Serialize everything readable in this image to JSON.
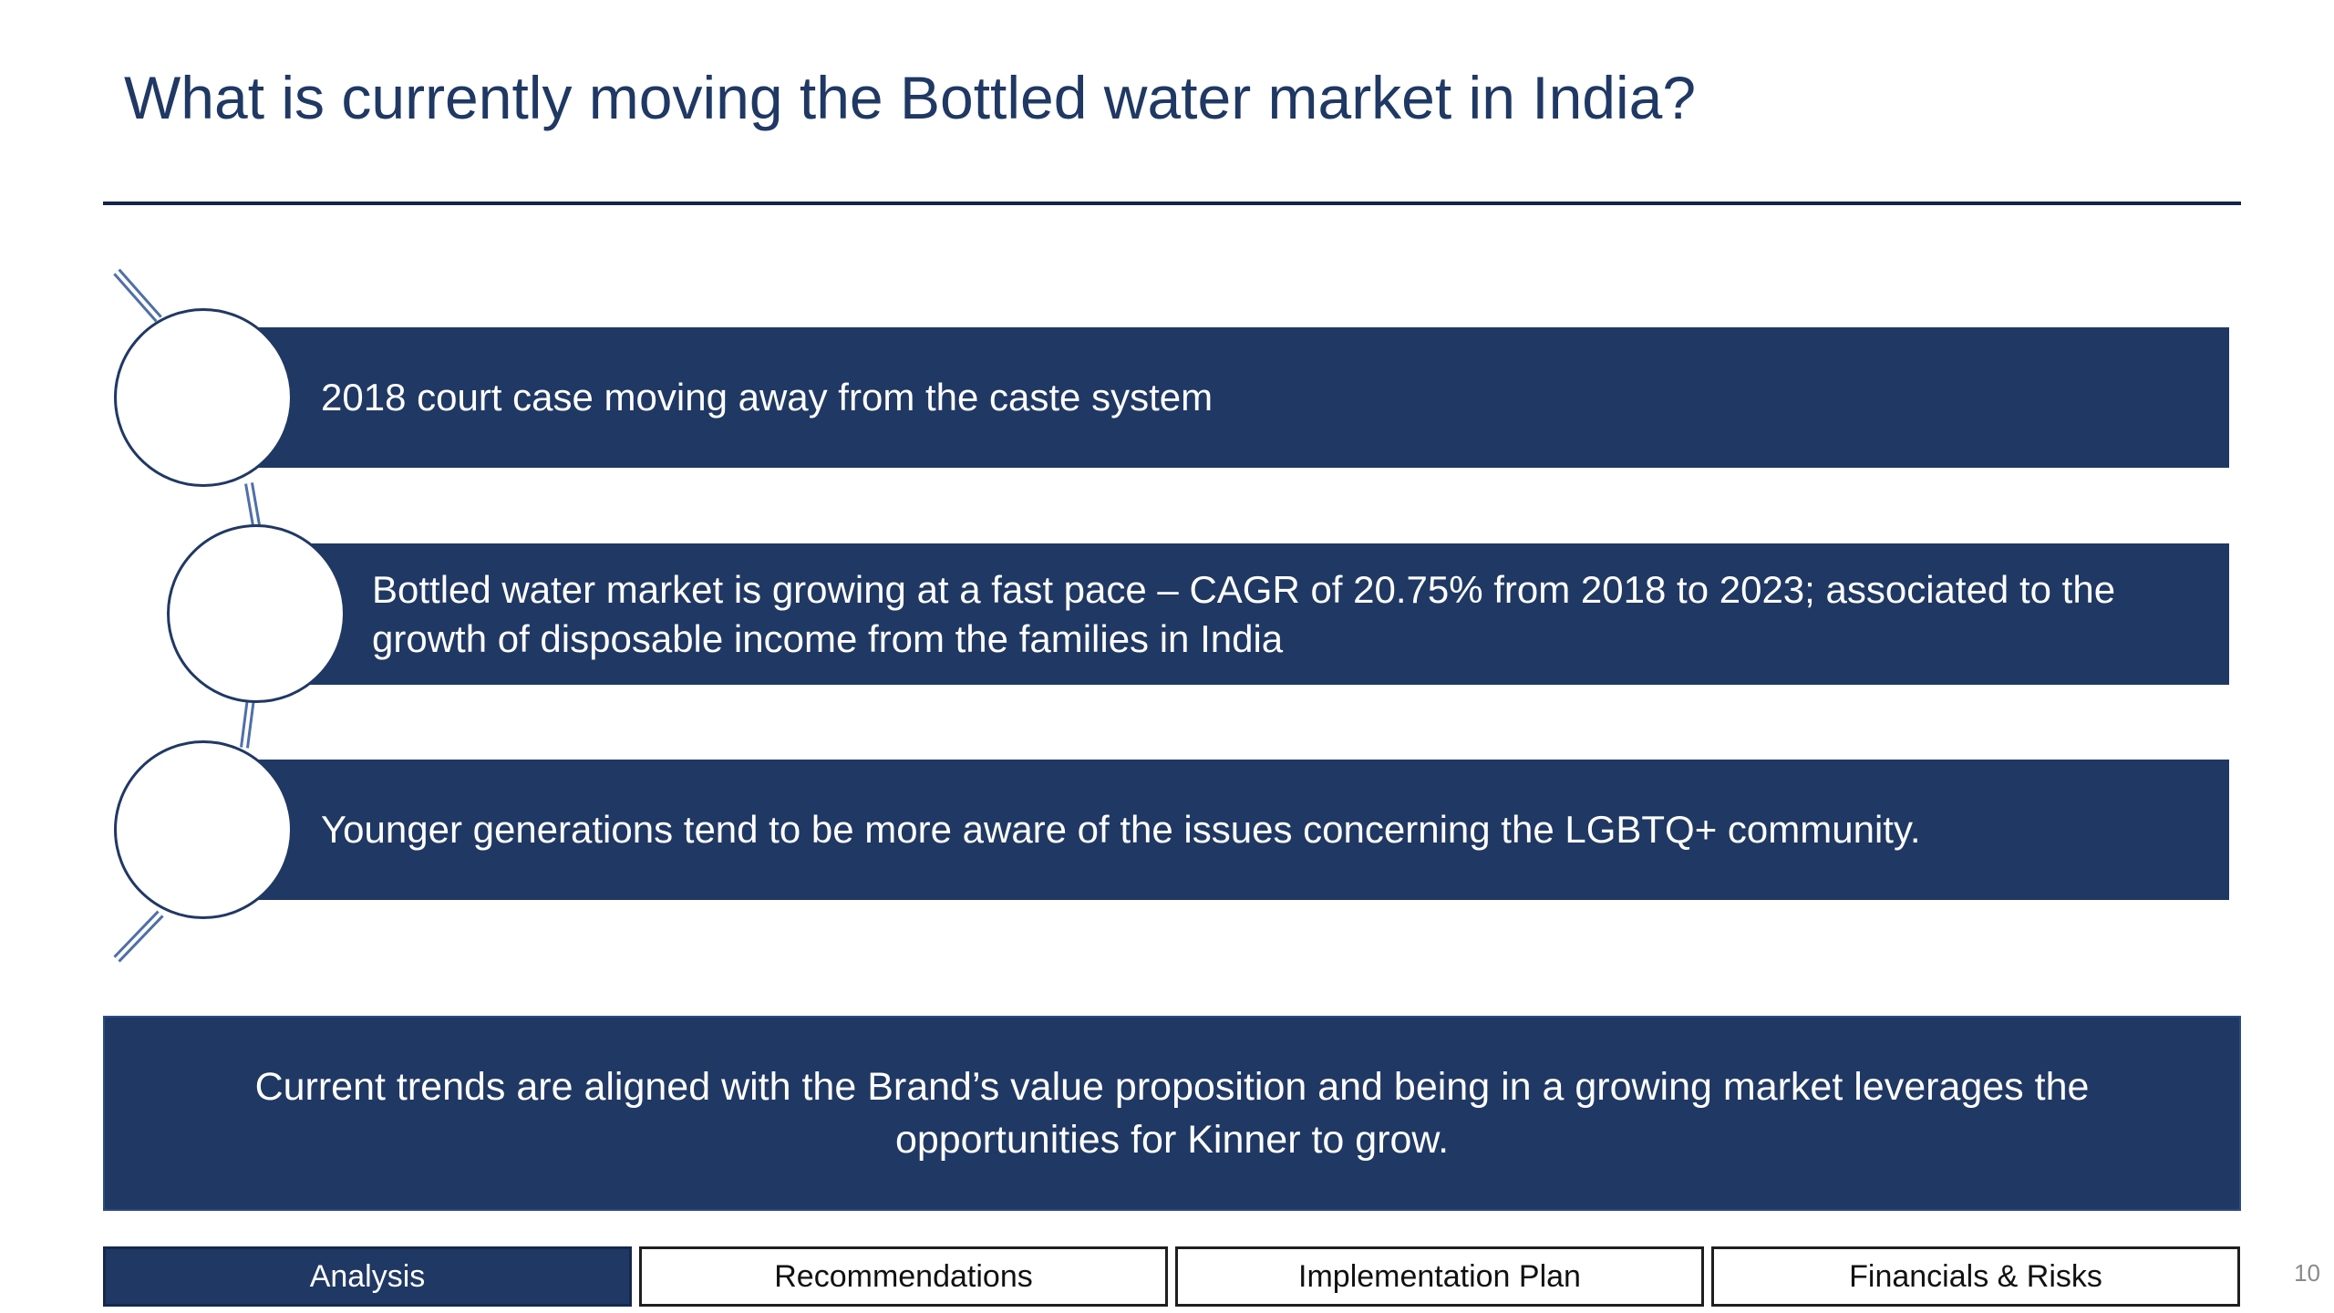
{
  "slide": {
    "title": "What is currently moving the Bottled water market in India?",
    "page_number": "10"
  },
  "points": [
    {
      "text": "2018 court case moving away from the caste system"
    },
    {
      "text": "Bottled water market is growing at a fast pace – CAGR of 20.75% from 2018 to 2023; associated to the growth of disposable income from the families in India"
    },
    {
      "text": "Younger generations tend to be more aware of the issues concerning the LGBTQ+ community."
    }
  ],
  "conclusion": {
    "text": "Current trends are aligned with the Brand’s value proposition and being in a growing market leverages the opportunities for Kinner to grow."
  },
  "nav_tabs": [
    {
      "label": "Analysis",
      "active": true
    },
    {
      "label": "Recommendations",
      "active": false
    },
    {
      "label": "Implementation Plan",
      "active": false
    },
    {
      "label": "Financials & Risks",
      "active": false
    }
  ],
  "colors": {
    "primary_navy": "#203864",
    "title_navy": "#1f3864",
    "connector_blue": "#4f6fa8",
    "background": "#ffffff"
  }
}
